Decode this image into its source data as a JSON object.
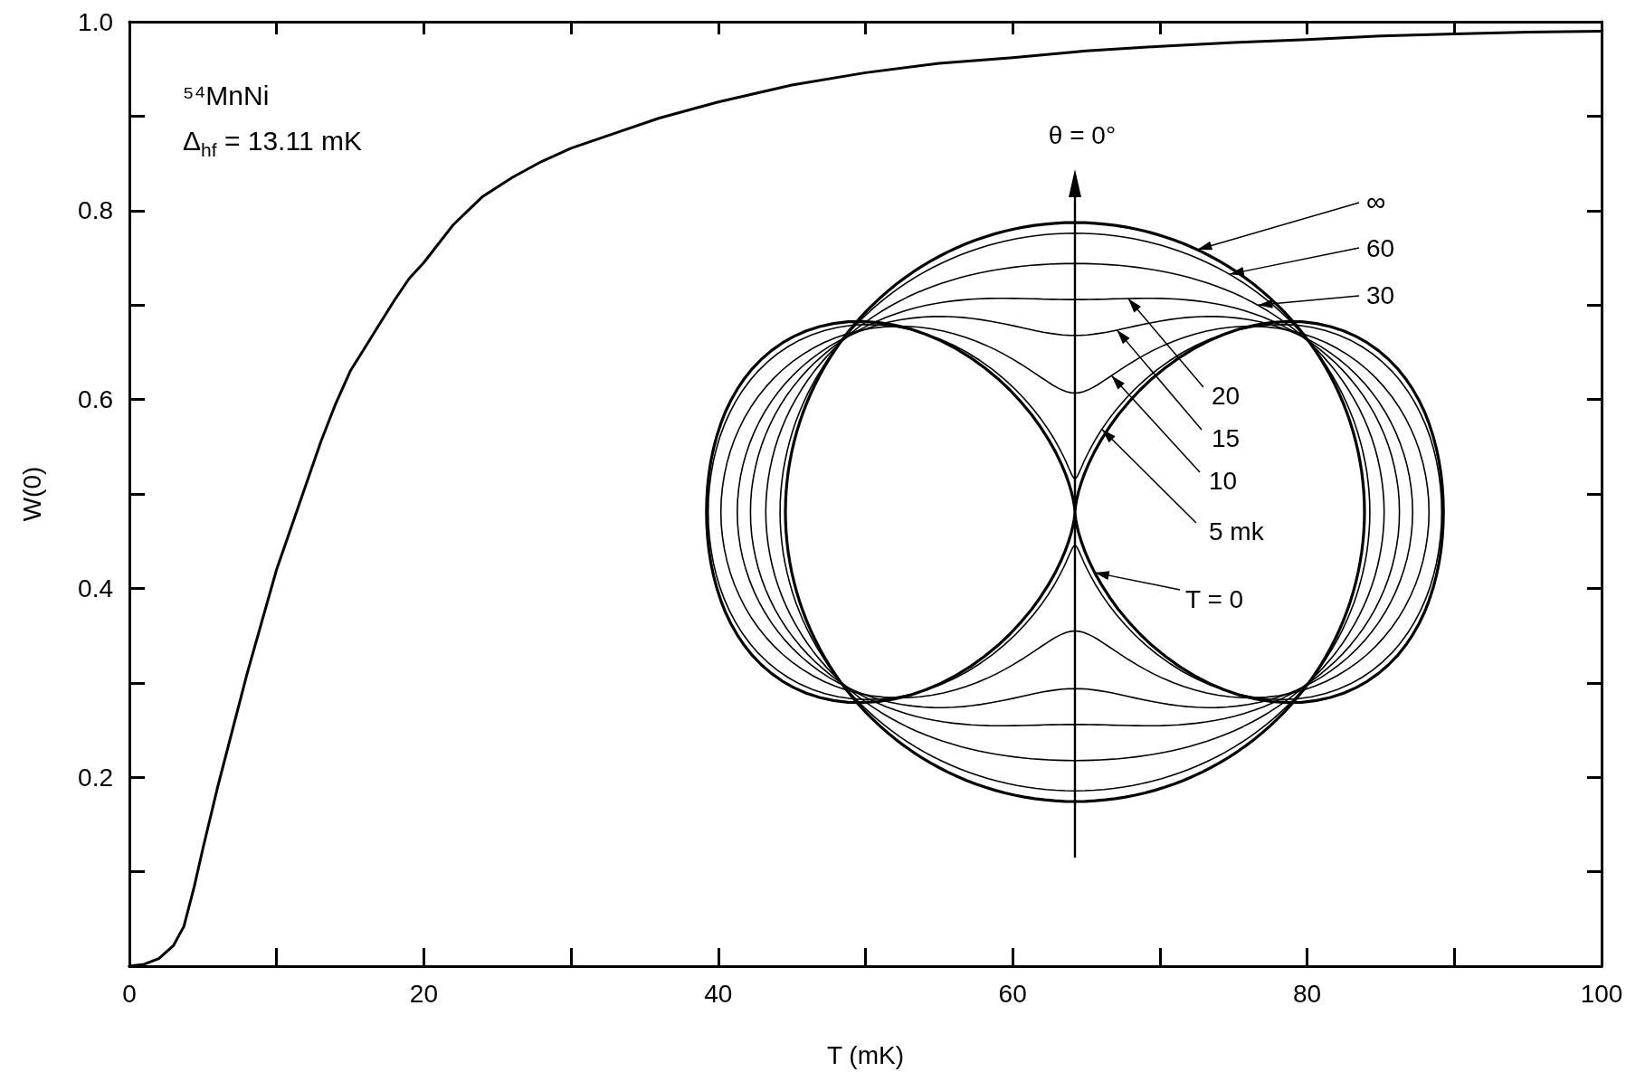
{
  "chart_data": {
    "type": "line",
    "xlabel": "T (mK)",
    "ylabel": "W(0)",
    "x": [
      0,
      1,
      2,
      3,
      3.7,
      4.4,
      5,
      6,
      7,
      8,
      9,
      10,
      11,
      12,
      13,
      14,
      15,
      16,
      17,
      18,
      19,
      20,
      22,
      24,
      26,
      28,
      30,
      33,
      36,
      40,
      45,
      50,
      55,
      60,
      65,
      70,
      75,
      80,
      85,
      90,
      95,
      100
    ],
    "values": [
      0,
      0.002,
      0.008,
      0.022,
      0.042,
      0.084,
      0.125,
      0.19,
      0.25,
      0.31,
      0.365,
      0.42,
      0.465,
      0.51,
      0.555,
      0.595,
      0.63,
      0.655,
      0.68,
      0.705,
      0.728,
      0.745,
      0.785,
      0.815,
      0.835,
      0.852,
      0.866,
      0.882,
      0.898,
      0.915,
      0.933,
      0.946,
      0.956,
      0.962,
      0.969,
      0.974,
      0.978,
      0.981,
      0.985,
      0.987,
      0.989,
      0.99
    ],
    "color": "#000000",
    "marker": "none",
    "line_style": "solid",
    "grid": false,
    "xlim": [
      0,
      100
    ],
    "xticks": [
      0,
      {
        "value": 10,
        "label": null
      },
      20,
      {
        "value": 30,
        "label": null
      },
      40,
      {
        "value": 50,
        "label": null
      },
      60,
      {
        "value": 70,
        "label": null
      },
      80,
      {
        "value": 90,
        "label": null
      },
      100
    ],
    "ylim": [
      0,
      1
    ],
    "yticks": [
      {
        "value": 0.1,
        "label": null
      },
      0.2,
      {
        "value": 0.3,
        "label": null
      },
      0.4,
      {
        "value": 0.5,
        "label": null
      },
      0.6,
      {
        "value": 0.7,
        "label": null
      },
      0.8,
      {
        "value": 0.9,
        "label": null
      },
      {
        "value": 1,
        "label": "1.0"
      }
    ],
    "annotations": [
      "⁵⁴MnNi",
      "Δ$_{hf}$ = 13.11 mK",
      "θ = 0°",
      "∞",
      "60",
      "30",
      "20",
      "15",
      "10",
      "5 mk",
      "T = 0"
    ]
  }
}
